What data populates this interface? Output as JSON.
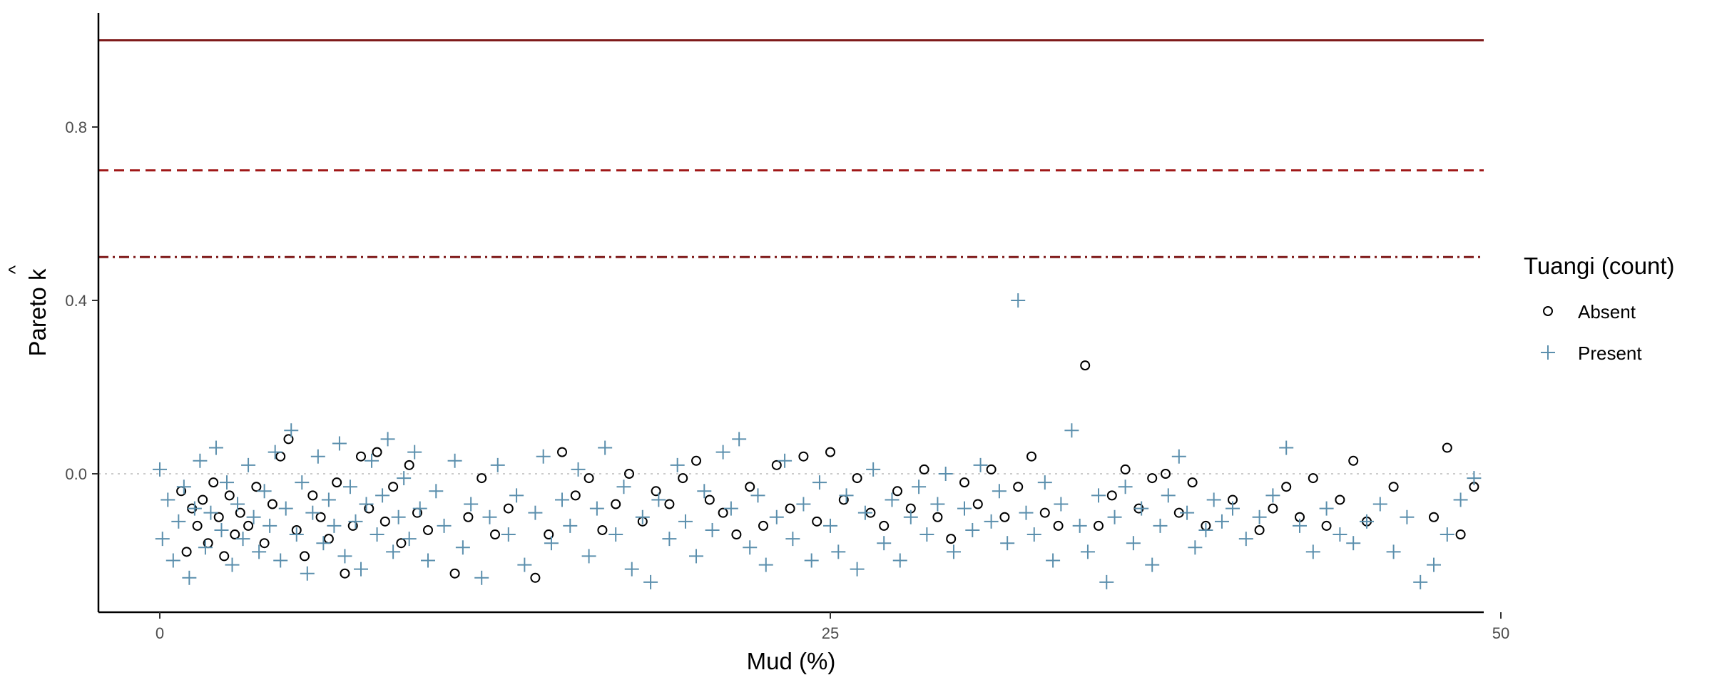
{
  "chart_data": {
    "type": "scatter",
    "xlabel": "Mud (%)",
    "ylabel_prefix": "Pareto ",
    "ylabel_hat": "k",
    "xlim": [
      -2.3,
      49.5
    ],
    "ylim": [
      -0.315,
      1.06
    ],
    "xticks": [
      0,
      25,
      50,
      75
    ],
    "yticks": [
      0.0,
      0.4,
      0.8
    ],
    "ytick_labels": [
      "0.0",
      "0.4",
      "0.8"
    ],
    "grid": false,
    "reference_lines": [
      {
        "y": 1.0,
        "style": "solid",
        "color": "#7f1a1a"
      },
      {
        "y": 0.7,
        "style": "dashed",
        "color": "#a01818"
      },
      {
        "y": 0.5,
        "style": "dotdash",
        "color": "#7f1a1a"
      },
      {
        "y": 0.0,
        "style": "dotted",
        "color": "#cccccc"
      }
    ],
    "legend": {
      "title": "Tuangi (count)",
      "position": "right",
      "entries": [
        {
          "label": "Absent",
          "shape": "circle",
          "color": "#000000"
        },
        {
          "label": "Present",
          "shape": "plus",
          "color": "#5b8fad"
        }
      ]
    },
    "series": [
      {
        "name": "Absent",
        "shape": "circle",
        "color": "#000000",
        "points": [
          [
            0.8,
            -0.04
          ],
          [
            1.0,
            -0.18
          ],
          [
            1.2,
            -0.08
          ],
          [
            1.4,
            -0.12
          ],
          [
            1.6,
            -0.06
          ],
          [
            1.8,
            -0.16
          ],
          [
            2.0,
            -0.02
          ],
          [
            2.2,
            -0.1
          ],
          [
            2.4,
            -0.19
          ],
          [
            2.6,
            -0.05
          ],
          [
            2.8,
            -0.14
          ],
          [
            3.0,
            -0.09
          ],
          [
            3.3,
            -0.12
          ],
          [
            3.6,
            -0.03
          ],
          [
            3.9,
            -0.16
          ],
          [
            4.2,
            -0.07
          ],
          [
            4.5,
            0.04
          ],
          [
            4.8,
            0.08
          ],
          [
            5.1,
            -0.13
          ],
          [
            5.4,
            -0.19
          ],
          [
            5.7,
            -0.05
          ],
          [
            6.0,
            -0.1
          ],
          [
            6.3,
            -0.15
          ],
          [
            6.6,
            -0.02
          ],
          [
            6.9,
            -0.23
          ],
          [
            7.2,
            -0.12
          ],
          [
            7.5,
            0.04
          ],
          [
            7.8,
            -0.08
          ],
          [
            8.1,
            0.05
          ],
          [
            8.4,
            -0.11
          ],
          [
            8.7,
            -0.03
          ],
          [
            9.0,
            -0.16
          ],
          [
            9.3,
            0.02
          ],
          [
            9.6,
            -0.09
          ],
          [
            10.0,
            -0.13
          ],
          [
            11.0,
            -0.23
          ],
          [
            11.5,
            -0.1
          ],
          [
            12.0,
            -0.01
          ],
          [
            12.5,
            -0.14
          ],
          [
            13.0,
            -0.08
          ],
          [
            14.0,
            -0.24
          ],
          [
            14.5,
            -0.14
          ],
          [
            15.0,
            0.05
          ],
          [
            15.5,
            -0.05
          ],
          [
            16.0,
            -0.01
          ],
          [
            16.5,
            -0.13
          ],
          [
            17.0,
            -0.07
          ],
          [
            17.5,
            0.0
          ],
          [
            18.0,
            -0.11
          ],
          [
            18.5,
            -0.04
          ],
          [
            19.0,
            -0.07
          ],
          [
            19.5,
            -0.01
          ],
          [
            20.0,
            0.03
          ],
          [
            20.5,
            -0.06
          ],
          [
            21.0,
            -0.09
          ],
          [
            21.5,
            -0.14
          ],
          [
            22.0,
            -0.03
          ],
          [
            22.5,
            -0.12
          ],
          [
            23.0,
            0.02
          ],
          [
            23.5,
            -0.08
          ],
          [
            24.0,
            0.04
          ],
          [
            24.5,
            -0.11
          ],
          [
            25.0,
            0.05
          ],
          [
            25.5,
            -0.06
          ],
          [
            26.0,
            -0.01
          ],
          [
            26.5,
            -0.09
          ],
          [
            27.0,
            -0.12
          ],
          [
            27.5,
            -0.04
          ],
          [
            28.0,
            -0.08
          ],
          [
            28.5,
            0.01
          ],
          [
            29.0,
            -0.1
          ],
          [
            29.5,
            -0.15
          ],
          [
            30.0,
            -0.02
          ],
          [
            30.5,
            -0.07
          ],
          [
            31.0,
            0.01
          ],
          [
            31.5,
            -0.1
          ],
          [
            32.0,
            -0.03
          ],
          [
            32.5,
            0.04
          ],
          [
            33.0,
            -0.09
          ],
          [
            33.5,
            -0.12
          ],
          [
            34.5,
            0.25
          ],
          [
            35.0,
            -0.12
          ],
          [
            35.5,
            -0.05
          ],
          [
            36.0,
            0.01
          ],
          [
            36.5,
            -0.08
          ],
          [
            37.0,
            -0.01
          ],
          [
            37.5,
            0.0
          ],
          [
            38.0,
            -0.09
          ],
          [
            38.5,
            -0.02
          ],
          [
            39.0,
            -0.12
          ],
          [
            40.0,
            -0.06
          ],
          [
            41.0,
            -0.13
          ],
          [
            41.5,
            -0.08
          ],
          [
            42.0,
            -0.03
          ],
          [
            42.5,
            -0.1
          ],
          [
            43.0,
            -0.01
          ],
          [
            43.5,
            -0.12
          ],
          [
            44.0,
            -0.06
          ],
          [
            44.5,
            0.03
          ],
          [
            45.0,
            -0.11
          ],
          [
            46.0,
            -0.03
          ],
          [
            47.5,
            -0.1
          ],
          [
            48.0,
            0.06
          ],
          [
            48.5,
            -0.14
          ],
          [
            49.0,
            -0.03
          ]
        ]
      },
      {
        "name": "Present",
        "shape": "plus",
        "color": "#5b8fad",
        "points": [
          [
            0.0,
            0.01
          ],
          [
            0.1,
            -0.15
          ],
          [
            0.3,
            -0.06
          ],
          [
            0.5,
            -0.2
          ],
          [
            0.7,
            -0.11
          ],
          [
            0.9,
            -0.03
          ],
          [
            1.1,
            -0.24
          ],
          [
            1.3,
            -0.08
          ],
          [
            1.5,
            0.03
          ],
          [
            1.7,
            -0.17
          ],
          [
            1.9,
            -0.09
          ],
          [
            2.1,
            0.06
          ],
          [
            2.3,
            -0.13
          ],
          [
            2.5,
            -0.02
          ],
          [
            2.7,
            -0.21
          ],
          [
            2.9,
            -0.07
          ],
          [
            3.1,
            -0.15
          ],
          [
            3.3,
            0.02
          ],
          [
            3.5,
            -0.1
          ],
          [
            3.7,
            -0.18
          ],
          [
            3.9,
            -0.04
          ],
          [
            4.1,
            -0.12
          ],
          [
            4.3,
            0.05
          ],
          [
            4.5,
            -0.2
          ],
          [
            4.7,
            -0.08
          ],
          [
            4.9,
            0.1
          ],
          [
            5.1,
            -0.14
          ],
          [
            5.3,
            -0.02
          ],
          [
            5.5,
            -0.23
          ],
          [
            5.7,
            -0.09
          ],
          [
            5.9,
            0.04
          ],
          [
            6.1,
            -0.16
          ],
          [
            6.3,
            -0.06
          ],
          [
            6.5,
            -0.12
          ],
          [
            6.7,
            0.07
          ],
          [
            6.9,
            -0.19
          ],
          [
            7.1,
            -0.03
          ],
          [
            7.3,
            -0.11
          ],
          [
            7.5,
            -0.22
          ],
          [
            7.7,
            -0.07
          ],
          [
            7.9,
            0.03
          ],
          [
            8.1,
            -0.14
          ],
          [
            8.3,
            -0.05
          ],
          [
            8.5,
            0.08
          ],
          [
            8.7,
            -0.18
          ],
          [
            8.9,
            -0.1
          ],
          [
            9.1,
            -0.01
          ],
          [
            9.3,
            -0.15
          ],
          [
            9.5,
            0.05
          ],
          [
            9.7,
            -0.08
          ],
          [
            10.0,
            -0.2
          ],
          [
            10.3,
            -0.04
          ],
          [
            10.6,
            -0.12
          ],
          [
            11.0,
            0.03
          ],
          [
            11.3,
            -0.17
          ],
          [
            11.6,
            -0.07
          ],
          [
            12.0,
            -0.24
          ],
          [
            12.3,
            -0.1
          ],
          [
            12.6,
            0.02
          ],
          [
            13.0,
            -0.14
          ],
          [
            13.3,
            -0.05
          ],
          [
            13.6,
            -0.21
          ],
          [
            14.0,
            -0.09
          ],
          [
            14.3,
            0.04
          ],
          [
            14.6,
            -0.16
          ],
          [
            15.0,
            -0.06
          ],
          [
            15.3,
            -0.12
          ],
          [
            15.6,
            0.01
          ],
          [
            16.0,
            -0.19
          ],
          [
            16.3,
            -0.08
          ],
          [
            16.6,
            0.06
          ],
          [
            17.0,
            -0.14
          ],
          [
            17.3,
            -0.03
          ],
          [
            17.6,
            -0.22
          ],
          [
            18.0,
            -0.1
          ],
          [
            18.3,
            -0.25
          ],
          [
            18.6,
            -0.06
          ],
          [
            19.0,
            -0.15
          ],
          [
            19.3,
            0.02
          ],
          [
            19.6,
            -0.11
          ],
          [
            20.0,
            -0.19
          ],
          [
            20.3,
            -0.04
          ],
          [
            20.6,
            -0.13
          ],
          [
            21.0,
            0.05
          ],
          [
            21.3,
            -0.08
          ],
          [
            21.6,
            0.08
          ],
          [
            22.0,
            -0.17
          ],
          [
            22.3,
            -0.05
          ],
          [
            22.6,
            -0.21
          ],
          [
            23.0,
            -0.1
          ],
          [
            23.3,
            0.03
          ],
          [
            23.6,
            -0.15
          ],
          [
            24.0,
            -0.07
          ],
          [
            24.3,
            -0.2
          ],
          [
            24.6,
            -0.02
          ],
          [
            25.0,
            -0.12
          ],
          [
            25.3,
            -0.18
          ],
          [
            25.6,
            -0.05
          ],
          [
            26.0,
            -0.22
          ],
          [
            26.3,
            -0.09
          ],
          [
            26.6,
            0.01
          ],
          [
            27.0,
            -0.16
          ],
          [
            27.3,
            -0.06
          ],
          [
            27.6,
            -0.2
          ],
          [
            28.0,
            -0.1
          ],
          [
            28.3,
            -0.03
          ],
          [
            28.6,
            -0.14
          ],
          [
            29.0,
            -0.07
          ],
          [
            29.3,
            0.0
          ],
          [
            29.6,
            -0.18
          ],
          [
            30.0,
            -0.08
          ],
          [
            30.3,
            -0.13
          ],
          [
            30.6,
            0.02
          ],
          [
            31.0,
            -0.11
          ],
          [
            31.3,
            -0.04
          ],
          [
            31.6,
            -0.16
          ],
          [
            32.0,
            0.4
          ],
          [
            32.3,
            -0.09
          ],
          [
            32.6,
            -0.14
          ],
          [
            33.0,
            -0.02
          ],
          [
            33.3,
            -0.2
          ],
          [
            33.6,
            -0.07
          ],
          [
            34.0,
            0.1
          ],
          [
            34.3,
            -0.12
          ],
          [
            34.6,
            -0.18
          ],
          [
            35.0,
            -0.05
          ],
          [
            35.3,
            -0.25
          ],
          [
            35.6,
            -0.1
          ],
          [
            36.0,
            -0.03
          ],
          [
            36.3,
            -0.16
          ],
          [
            36.6,
            -0.08
          ],
          [
            37.0,
            -0.21
          ],
          [
            37.3,
            -0.12
          ],
          [
            37.6,
            -0.05
          ],
          [
            38.0,
            0.04
          ],
          [
            38.3,
            -0.09
          ],
          [
            38.6,
            -0.17
          ],
          [
            39.0,
            -0.13
          ],
          [
            39.3,
            -0.06
          ],
          [
            39.6,
            -0.11
          ],
          [
            40.0,
            -0.08
          ],
          [
            40.5,
            -0.15
          ],
          [
            41.0,
            -0.1
          ],
          [
            41.5,
            -0.05
          ],
          [
            42.0,
            0.06
          ],
          [
            42.5,
            -0.12
          ],
          [
            43.0,
            -0.18
          ],
          [
            43.5,
            -0.08
          ],
          [
            44.0,
            -0.14
          ],
          [
            44.5,
            -0.16
          ],
          [
            45.0,
            -0.11
          ],
          [
            45.5,
            -0.07
          ],
          [
            46.0,
            -0.18
          ],
          [
            46.5,
            -0.1
          ],
          [
            47.0,
            -0.25
          ],
          [
            47.5,
            -0.21
          ],
          [
            48.0,
            -0.14
          ],
          [
            48.5,
            -0.06
          ],
          [
            49.0,
            -0.01
          ]
        ]
      }
    ]
  }
}
